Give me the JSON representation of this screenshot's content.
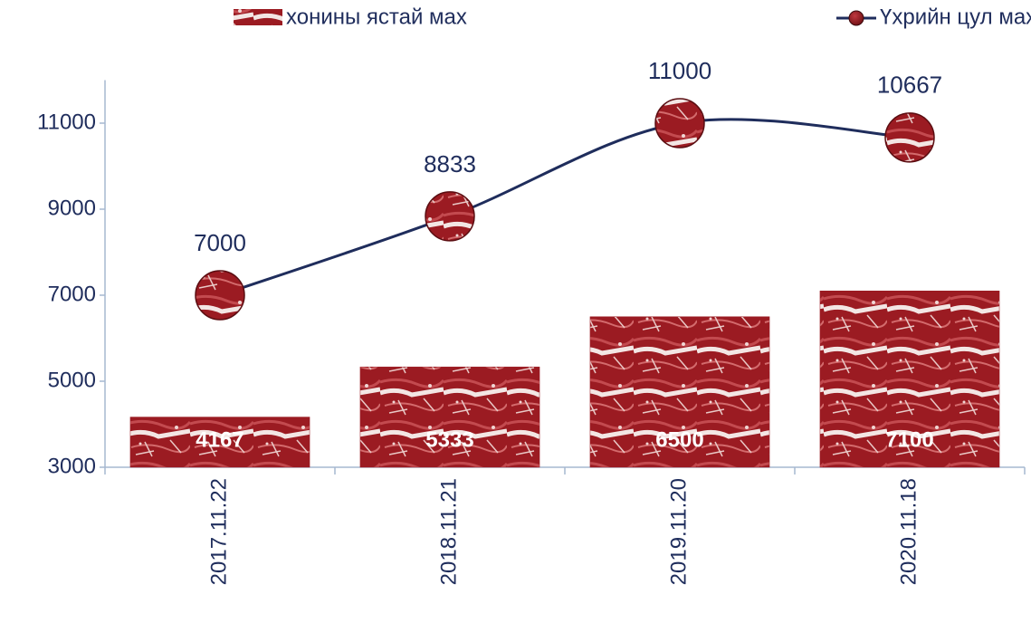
{
  "chart_data": {
    "type": "combo",
    "categories": [
      "2017.11.22",
      "2018.11.21",
      "2019.11.20",
      "2020.11.18"
    ],
    "series": [
      {
        "name": "хонины ястай мах",
        "type": "bar",
        "color": "#9b1b22",
        "values": [
          4167,
          5333,
          6500,
          7100
        ]
      },
      {
        "name": "Үхрийн цул мах",
        "type": "line",
        "color": "#1f2d5c",
        "values": [
          7000,
          8833,
          11000,
          10667
        ]
      }
    ],
    "ylim": [
      3000,
      12000
    ],
    "yticks": [
      3000,
      5000,
      7000,
      9000,
      11000
    ],
    "grid": false,
    "legend": "top"
  }
}
